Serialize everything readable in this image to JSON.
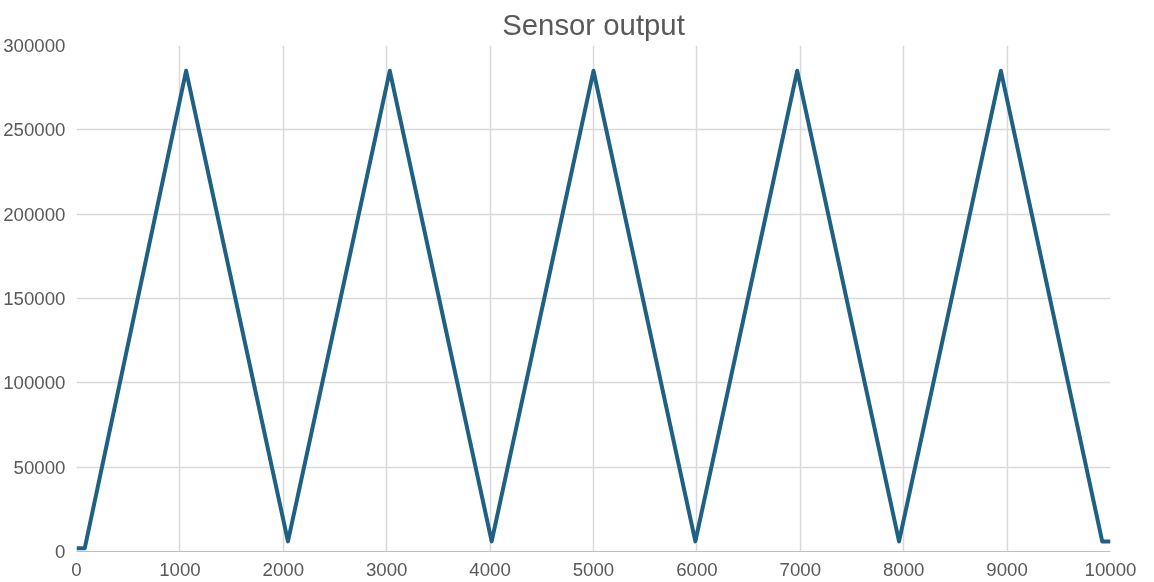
{
  "chart_data": {
    "type": "line",
    "title": "Sensor output",
    "x": [
      0,
      80,
      1060,
      2045,
      3030,
      4015,
      5000,
      5985,
      6970,
      7955,
      8940,
      9920,
      10000
    ],
    "series": [
      {
        "color": "#1f6184",
        "values": [
          2000,
          2000,
          285000,
          6000,
          285000,
          6000,
          285000,
          6000,
          285000,
          6000,
          285000,
          6000,
          6000
        ]
      }
    ],
    "xlim": [
      0,
      10000
    ],
    "xticks": [
      0,
      1000,
      2000,
      3000,
      4000,
      5000,
      6000,
      7000,
      8000,
      9000,
      10000
    ],
    "ylim": [
      0,
      300000
    ],
    "yticks": [
      0,
      50000,
      100000,
      150000,
      200000,
      250000,
      300000
    ],
    "grid": true,
    "marker": "none",
    "line_style": "solid"
  }
}
